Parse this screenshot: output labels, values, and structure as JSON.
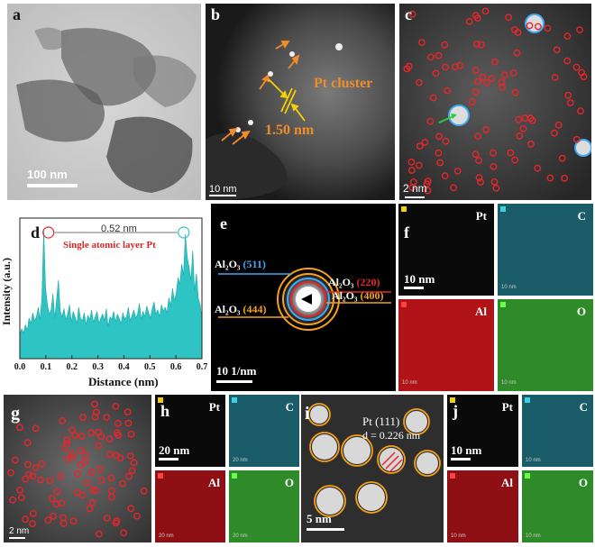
{
  "panels": {
    "a": {
      "label": "a",
      "scale": "100 nm"
    },
    "b": {
      "label": "b",
      "scale": "10 nm",
      "cluster_label": "Pt cluster",
      "spacing_label": "1.50 nm"
    },
    "c": {
      "label": "c",
      "scale": "2 nm"
    },
    "d": {
      "label": "d",
      "annotation": "0.52 nm",
      "title": "Single atomic layer Pt",
      "chart_data": {
        "type": "line",
        "xlabel": "Distance (nm)",
        "ylabel": "Intensity (a.u.)",
        "xlim": [
          0.0,
          0.7
        ],
        "x_ticks": [
          "0.0",
          "0.1",
          "0.2",
          "0.3",
          "0.4",
          "0.5",
          "0.6",
          "0.7"
        ],
        "fill": "#2ec4c4",
        "peaks": [
          0.11,
          0.63
        ],
        "values": [
          0.18,
          0.22,
          0.19,
          0.25,
          0.21,
          0.3,
          0.26,
          0.34,
          0.28,
          0.31,
          0.38,
          0.29,
          0.45,
          0.95,
          0.52,
          0.4,
          0.33,
          0.36,
          0.48,
          0.3,
          0.44,
          0.58,
          0.35,
          0.31,
          0.37,
          0.29,
          0.33,
          0.4,
          0.27,
          0.35,
          0.31,
          0.26,
          0.38,
          0.3,
          0.28,
          0.34,
          0.25,
          0.32,
          0.29,
          0.36,
          0.27,
          0.31,
          0.35,
          0.26,
          0.3,
          0.33,
          0.28,
          0.37,
          0.24,
          0.31,
          0.29,
          0.35,
          0.27,
          0.33,
          0.3,
          0.26,
          0.34,
          0.29,
          0.31,
          0.38,
          0.28,
          0.32,
          0.36,
          0.3,
          0.33,
          0.41,
          0.29,
          0.35,
          0.31,
          0.39,
          0.34,
          0.3,
          0.37,
          0.42,
          0.33,
          0.36,
          0.31,
          0.4,
          0.35,
          0.38,
          0.34,
          0.45,
          0.39,
          0.52,
          0.43,
          0.48,
          0.6,
          0.55,
          0.7,
          0.62,
          0.92,
          0.75,
          0.68,
          0.58,
          0.8,
          0.5,
          0.63,
          0.45,
          0.4,
          0.3
        ]
      }
    },
    "e": {
      "label": "e",
      "scale": "10 1/nm",
      "rings": [
        {
          "text": "Al₂O₃",
          "index": "(511)",
          "color": "#3fa9f5"
        },
        {
          "text": "Al₂O₃",
          "index": "(220)",
          "color": "#e8262a"
        },
        {
          "text": "Al₂O₃",
          "index": "(400)",
          "color": "#f7a11a"
        },
        {
          "text": "Al₂O₃",
          "index": "(444)",
          "color": "#f7a11a"
        }
      ]
    },
    "f": {
      "label": "f",
      "scale": "10 nm",
      "elements": [
        "Pt",
        "C",
        "Al",
        "O"
      ],
      "small_scale": "10 nm"
    },
    "g": {
      "label": "g",
      "scale": "2 nm"
    },
    "h": {
      "label": "h",
      "scale": "20 nm",
      "elements": [
        "Pt",
        "C",
        "Al",
        "O"
      ],
      "small_scale": "20 nm"
    },
    "i": {
      "label": "i",
      "scale": "5 nm",
      "plane": "Pt (111)",
      "d_spacing": "d  = 0.226 nm"
    },
    "j": {
      "label": "j",
      "scale": "10 nm",
      "elements": [
        "Pt",
        "C",
        "Al",
        "O"
      ],
      "small_scale": "10 nm"
    }
  },
  "colors": {
    "pt_map": "#0a0a0a",
    "c_map": "#1a5c68",
    "al_map": "#b01418",
    "o_map": "#2f8a2a",
    "atom_circle": "#e8262a",
    "cluster_circle": "#f7a11a",
    "arrow": "#f28c28"
  }
}
